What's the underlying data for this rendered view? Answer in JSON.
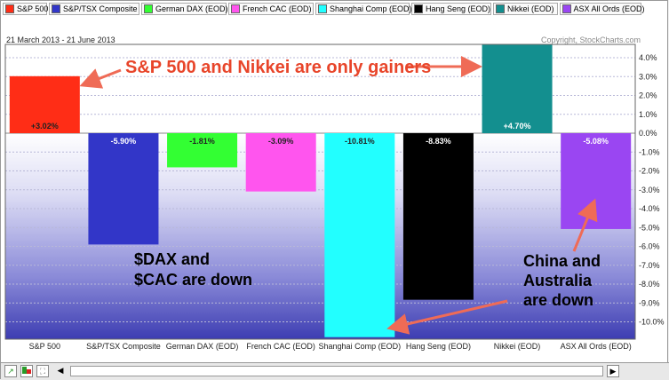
{
  "legend": [
    {
      "label": "S&P 500",
      "color": "#ff2d16"
    },
    {
      "label": "S&P/TSX Composite",
      "color": "#3236c8"
    },
    {
      "label": "German DAX (EOD)",
      "color": "#33ff33"
    },
    {
      "label": "French CAC (EOD)",
      "color": "#ff55ee"
    },
    {
      "label": "Shanghai Comp (EOD)",
      "color": "#22ffff"
    },
    {
      "label": "Hang Seng (EOD)",
      "color": "#000000"
    },
    {
      "label": "Nikkei (EOD)",
      "color": "#138f8f"
    },
    {
      "label": "ASX All Ords (EOD)",
      "color": "#9a46f2"
    }
  ],
  "date_range": "21 March 2013 - 21 June 2013",
  "copyright": "Copyright, StockCharts.com",
  "annotations": {
    "gainers": "S&P 500 and Nikkei are only gainers",
    "dax_cac": [
      "$DAX and",
      "$CAC are down"
    ],
    "china_aus": [
      "China and",
      "Australia",
      "are down"
    ]
  },
  "chart_data": {
    "type": "bar",
    "categories": [
      "S&P 500",
      "S&P/TSX Composite",
      "German DAX (EOD)",
      "French CAC (EOD)",
      "Shanghai Comp (EOD)",
      "Hang Seng (EOD)",
      "Nikkei (EOD)",
      "ASX All Ords (EOD)"
    ],
    "values": [
      3.02,
      -5.9,
      -1.81,
      -3.09,
      -10.81,
      -8.83,
      4.7,
      -5.08
    ],
    "data_labels": [
      "+3.02%",
      "-5.90%",
      "-1.81%",
      "-3.09%",
      "-10.81%",
      "-8.83%",
      "+4.70%",
      "-5.08%"
    ],
    "colors": [
      "#ff2d16",
      "#3236c8",
      "#33ff33",
      "#ff55ee",
      "#22ffff",
      "#000000",
      "#138f8f",
      "#9a46f2"
    ],
    "ylim": [
      -11,
      5
    ],
    "yticks": [
      4,
      3,
      2,
      1,
      0,
      -1,
      -2,
      -3,
      -4,
      -5,
      -6,
      -7,
      -8,
      -9,
      -10
    ],
    "ytick_labels": [
      "4.0%",
      "3.0%",
      "2.0%",
      "1.0%",
      "0.0%",
      "-1.0%",
      "-2.0%",
      "-3.0%",
      "-4.0%",
      "-5.0%",
      "-6.0%",
      "-7.0%",
      "-8.0%",
      "-9.0%",
      "-10.0%"
    ],
    "grid": true,
    "title": "",
    "xlabel": "",
    "ylabel": ""
  }
}
